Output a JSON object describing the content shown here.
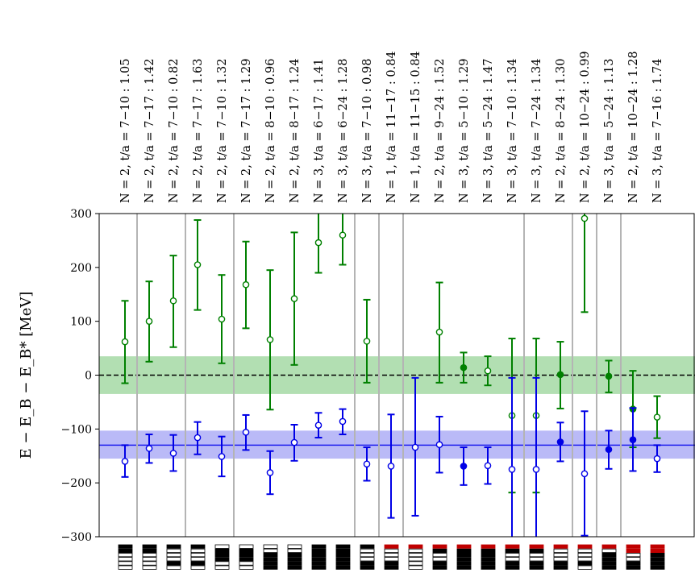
{
  "chart_data": {
    "type": "scatter",
    "ylabel": "E − E_B − E_B*  [MeV]",
    "ylim": [
      -300,
      300
    ],
    "yticks": [
      -300,
      -200,
      -100,
      0,
      100,
      200,
      300
    ],
    "fit_labels": [
      "N = 2, t/a = 7−10 :  1.05",
      "N = 2, t/a = 7−17 :  1.42",
      "N = 2, t/a = 7−10 :  0.82",
      "N = 2, t/a = 7−17 :  1.63",
      "N = 2, t/a = 7−10 :  1.32",
      "N = 2, t/a = 7−17 :  1.29",
      "N = 2, t/a = 8−10 :  0.96",
      "N = 2, t/a = 8−17 :  1.24",
      "N = 3, t/a = 6−17 :  1.41",
      "N = 3, t/a = 6−24 :  1.28",
      "N = 3, t/a = 7−10 :  0.98",
      "N = 1, t/a = 11−17 :  0.84",
      "N = 1, t/a = 11−15 :  0.84",
      "N = 2, t/a = 9−24 :  1.52",
      "N = 3, t/a = 5−10 :  1.29",
      "N = 3, t/a = 5−24 :  1.47",
      "N = 3, t/a = 7−10 :  1.34",
      "N = 3, t/a = 7−24 :  1.34",
      "N = 2, t/a = 8−24 :  1.30",
      "N = 2, t/a = 10−24 :  0.99",
      "N = 3, t/a = 5−24 :  1.13",
      "N = 2, t/a = 10−24 :  1.28",
      "N = 3, t/a = 7−16 :  1.74"
    ],
    "group_separators_after": [
      1,
      3,
      5,
      10,
      11,
      12,
      17,
      19,
      20,
      21
    ],
    "bands": [
      {
        "color": "#7fc97f",
        "center": 0,
        "lower": -35,
        "upper": 35,
        "line_style": "dashed"
      },
      {
        "color": "#8c8cf2",
        "center": -130,
        "lower": -155,
        "upper": -103,
        "line_style": "solid"
      }
    ],
    "series": [
      {
        "color": "#008000",
        "points": [
          {
            "x": 1,
            "y": 62,
            "lo": -15,
            "hi": 138,
            "filled": false
          },
          {
            "x": 2,
            "y": 100,
            "lo": 25,
            "hi": 174,
            "filled": false
          },
          {
            "x": 3,
            "y": 138,
            "lo": 52,
            "hi": 222,
            "filled": false
          },
          {
            "x": 4,
            "y": 205,
            "lo": 121,
            "hi": 288,
            "filled": false
          },
          {
            "x": 5,
            "y": 104,
            "lo": 22,
            "hi": 186,
            "filled": false
          },
          {
            "x": 6,
            "y": 168,
            "lo": 87,
            "hi": 248,
            "filled": false
          },
          {
            "x": 7,
            "y": 66,
            "lo": -64,
            "hi": 195,
            "filled": false
          },
          {
            "x": 8,
            "y": 142,
            "lo": 19,
            "hi": 265,
            "filled": false
          },
          {
            "x": 9,
            "y": 246,
            "lo": 190,
            "hi": 300,
            "filled": false
          },
          {
            "x": 10,
            "y": 260,
            "lo": 205,
            "hi": 300,
            "filled": false
          },
          {
            "x": 11,
            "y": 63,
            "lo": -14,
            "hi": 140,
            "filled": false
          },
          {
            "x": 14,
            "y": 80,
            "lo": -14,
            "hi": 172,
            "filled": false
          },
          {
            "x": 15,
            "y": 14,
            "lo": -14,
            "hi": 42,
            "filled": true
          },
          {
            "x": 16,
            "y": 8,
            "lo": -19,
            "hi": 35,
            "filled": false
          },
          {
            "x": 17,
            "y": -75,
            "lo": -218,
            "hi": 68,
            "filled": false
          },
          {
            "x": 18,
            "y": -75,
            "lo": -218,
            "hi": 68,
            "filled": false
          },
          {
            "x": 19,
            "y": 1,
            "lo": -62,
            "hi": 62,
            "filled": true
          },
          {
            "x": 20,
            "y": 291,
            "lo": 117,
            "hi": 300,
            "filled": false
          },
          {
            "x": 21,
            "y": -2,
            "lo": -32,
            "hi": 27,
            "filled": true
          },
          {
            "x": 22,
            "y": -63,
            "lo": -134,
            "hi": 8,
            "filled": true
          },
          {
            "x": 23,
            "y": -78,
            "lo": -117,
            "hi": -39,
            "filled": false
          }
        ]
      },
      {
        "color": "#0000e6",
        "points": [
          {
            "x": 1,
            "y": -160,
            "lo": -189,
            "hi": -130,
            "filled": false
          },
          {
            "x": 2,
            "y": -136,
            "lo": -163,
            "hi": -110,
            "filled": false
          },
          {
            "x": 3,
            "y": -145,
            "lo": -178,
            "hi": -111,
            "filled": false
          },
          {
            "x": 4,
            "y": -116,
            "lo": -147,
            "hi": -87,
            "filled": false
          },
          {
            "x": 5,
            "y": -151,
            "lo": -188,
            "hi": -114,
            "filled": false
          },
          {
            "x": 6,
            "y": -106,
            "lo": -139,
            "hi": -74,
            "filled": false
          },
          {
            "x": 7,
            "y": -181,
            "lo": -221,
            "hi": -141,
            "filled": false
          },
          {
            "x": 8,
            "y": -125,
            "lo": -159,
            "hi": -92,
            "filled": false
          },
          {
            "x": 9,
            "y": -93,
            "lo": -116,
            "hi": -70,
            "filled": false
          },
          {
            "x": 10,
            "y": -86,
            "lo": -110,
            "hi": -63,
            "filled": false
          },
          {
            "x": 11,
            "y": -165,
            "lo": -196,
            "hi": -134,
            "filled": false
          },
          {
            "x": 12,
            "y": -169,
            "lo": -265,
            "hi": -73,
            "filled": false
          },
          {
            "x": 13,
            "y": -134,
            "lo": -261,
            "hi": -5,
            "filled": false
          },
          {
            "x": 14,
            "y": -129,
            "lo": -181,
            "hi": -77,
            "filled": false
          },
          {
            "x": 15,
            "y": -169,
            "lo": -204,
            "hi": -134,
            "filled": true
          },
          {
            "x": 16,
            "y": -168,
            "lo": -202,
            "hi": -134,
            "filled": false
          },
          {
            "x": 17,
            "y": -175,
            "lo": -300,
            "hi": -5,
            "filled": false
          },
          {
            "x": 18,
            "y": -175,
            "lo": -300,
            "hi": -5,
            "filled": false
          },
          {
            "x": 19,
            "y": -124,
            "lo": -160,
            "hi": -88,
            "filled": true
          },
          {
            "x": 20,
            "y": -183,
            "lo": -298,
            "hi": -67,
            "filled": false
          },
          {
            "x": 21,
            "y": -138,
            "lo": -174,
            "hi": -103,
            "filled": true
          },
          {
            "x": 22,
            "y": -120,
            "lo": -178,
            "hi": -61,
            "filled": true
          },
          {
            "x": 23,
            "y": -155,
            "lo": -180,
            "hi": -130,
            "filled": false
          }
        ]
      }
    ],
    "operator_icons": [
      [
        "k",
        "k",
        "w",
        "w",
        "w",
        "w"
      ],
      [
        "k",
        "k",
        "w",
        "w",
        "w",
        "w"
      ],
      [
        "k",
        "w",
        "w",
        "w",
        "k",
        "w"
      ],
      [
        "k",
        "w",
        "w",
        "w",
        "k",
        "w"
      ],
      [
        "w",
        "k",
        "k",
        "k",
        "w",
        "w"
      ],
      [
        "w",
        "k",
        "k",
        "k",
        "w",
        "w"
      ],
      [
        "w",
        "w",
        "k",
        "k",
        "k",
        "k"
      ],
      [
        "w",
        "w",
        "k",
        "k",
        "k",
        "k"
      ],
      [
        "k",
        "k",
        "k",
        "k",
        "k",
        "k"
      ],
      [
        "k",
        "k",
        "k",
        "k",
        "k",
        "k"
      ],
      [
        "k",
        "w",
        "w",
        "w",
        "k",
        "k"
      ],
      [
        "r",
        "w",
        "w",
        "w",
        "k",
        "k"
      ],
      [
        "r",
        "w",
        "w",
        "w",
        "w",
        "w"
      ],
      [
        "r",
        "k",
        "w",
        "w",
        "k",
        "k"
      ],
      [
        "r",
        "k",
        "k",
        "k",
        "k",
        "k"
      ],
      [
        "r",
        "k",
        "k",
        "k",
        "k",
        "k"
      ],
      [
        "r",
        "k",
        "w",
        "w",
        "k",
        "k"
      ],
      [
        "r",
        "k",
        "w",
        "w",
        "k",
        "k"
      ],
      [
        "r",
        "w",
        "w",
        "w",
        "k",
        "k"
      ],
      [
        "r",
        "w",
        "w",
        "w",
        "k",
        "w"
      ],
      [
        "r",
        "w",
        "k",
        "k",
        "k",
        "k"
      ],
      [
        "r",
        "r",
        "w",
        "w",
        "k",
        "k"
      ],
      [
        "r",
        "r",
        "k",
        "k",
        "k",
        "k"
      ]
    ]
  }
}
